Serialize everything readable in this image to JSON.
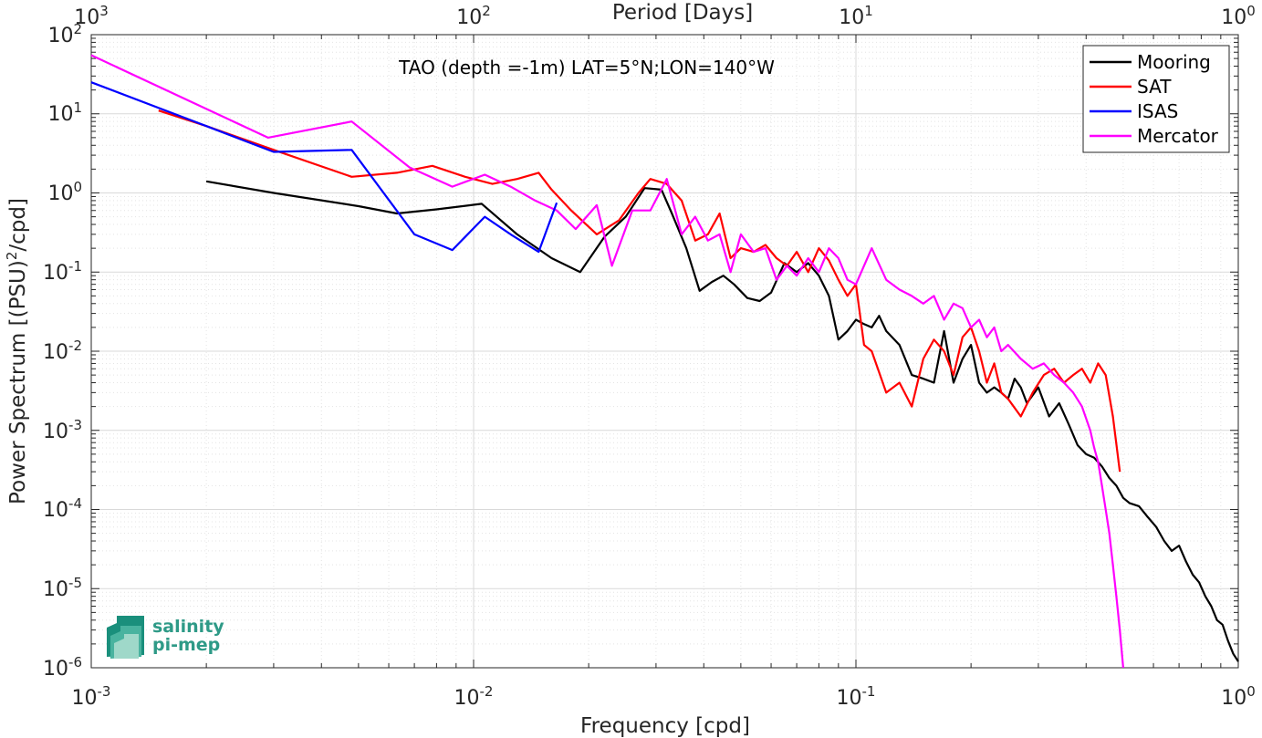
{
  "chart_data": {
    "type": "line",
    "x_scale": "log",
    "y_scale": "log",
    "xlim": [
      0.001,
      1
    ],
    "ylim": [
      1e-06,
      100
    ],
    "grid": true,
    "legend_position": "top-right",
    "xlabel": "Frequency [cpd]",
    "ylabel": "Power Spectrum [(PSU)",
    "ylabel_sup": "2",
    "ylabel_end": "/cpd]",
    "top_axis_label": "Period [Days]",
    "annotation": "TAO (depth =-1m) LAT=5°N;LON=140°W",
    "x_ticks": [
      {
        "base": "10",
        "exp": "-3"
      },
      {
        "base": "10",
        "exp": "-2"
      },
      {
        "base": "10",
        "exp": "-1"
      },
      {
        "base": "10",
        "exp": "0"
      }
    ],
    "top_ticks": [
      {
        "base": "10",
        "exp": "3"
      },
      {
        "base": "10",
        "exp": "2"
      },
      {
        "base": "10",
        "exp": "1"
      },
      {
        "base": "10",
        "exp": "0"
      }
    ],
    "y_ticks": [
      {
        "base": "10",
        "exp": "-6"
      },
      {
        "base": "10",
        "exp": "-5"
      },
      {
        "base": "10",
        "exp": "-4"
      },
      {
        "base": "10",
        "exp": "-3"
      },
      {
        "base": "10",
        "exp": "-2"
      },
      {
        "base": "10",
        "exp": "-1"
      },
      {
        "base": "10",
        "exp": "0"
      },
      {
        "base": "10",
        "exp": "1"
      },
      {
        "base": "10",
        "exp": "2"
      }
    ],
    "series": [
      {
        "name": "Mooring",
        "color": "#000000",
        "x": [
          0.002,
          0.003,
          0.005,
          0.0063,
          0.008,
          0.0105,
          0.013,
          0.016,
          0.019,
          0.022,
          0.025,
          0.028,
          0.031,
          0.033,
          0.036,
          0.039,
          0.042,
          0.045,
          0.048,
          0.052,
          0.056,
          0.06,
          0.065,
          0.07,
          0.075,
          0.08,
          0.085,
          0.09,
          0.095,
          0.1,
          0.105,
          0.11,
          0.115,
          0.12,
          0.13,
          0.14,
          0.15,
          0.16,
          0.17,
          0.18,
          0.19,
          0.2,
          0.21,
          0.22,
          0.23,
          0.24,
          0.25,
          0.26,
          0.27,
          0.28,
          0.3,
          0.32,
          0.34,
          0.36,
          0.38,
          0.4,
          0.42,
          0.44,
          0.46,
          0.48,
          0.5,
          0.52,
          0.55,
          0.58,
          0.61,
          0.64,
          0.67,
          0.7,
          0.73,
          0.76,
          0.79,
          0.82,
          0.85,
          0.88,
          0.91,
          0.94,
          0.97,
          1.0
        ],
        "y": [
          1.4,
          1.0,
          0.68,
          0.55,
          0.62,
          0.73,
          0.3,
          0.15,
          0.1,
          0.28,
          0.5,
          1.15,
          1.1,
          0.55,
          0.2,
          0.058,
          0.075,
          0.09,
          0.07,
          0.047,
          0.043,
          0.055,
          0.13,
          0.1,
          0.13,
          0.09,
          0.05,
          0.014,
          0.018,
          0.025,
          0.022,
          0.02,
          0.028,
          0.018,
          0.012,
          0.005,
          0.0045,
          0.004,
          0.018,
          0.004,
          0.008,
          0.012,
          0.004,
          0.003,
          0.0035,
          0.003,
          0.0025,
          0.0045,
          0.0035,
          0.0022,
          0.0035,
          0.0015,
          0.0022,
          0.0012,
          0.00065,
          0.0005,
          0.00045,
          0.00035,
          0.00025,
          0.0002,
          0.00014,
          0.00012,
          0.00011,
          8e-05,
          6e-05,
          4e-05,
          3e-05,
          3.5e-05,
          2.2e-05,
          1.5e-05,
          1.2e-05,
          8e-06,
          6e-06,
          4e-06,
          3.5e-06,
          2.2e-06,
          1.5e-06,
          1.2e-06
        ]
      },
      {
        "name": "SAT",
        "color": "#ff0000",
        "x": [
          0.0015,
          0.002,
          0.003,
          0.0048,
          0.0063,
          0.0078,
          0.0095,
          0.0112,
          0.013,
          0.0148,
          0.016,
          0.018,
          0.021,
          0.024,
          0.027,
          0.029,
          0.032,
          0.035,
          0.038,
          0.041,
          0.044,
          0.047,
          0.05,
          0.054,
          0.058,
          0.062,
          0.066,
          0.07,
          0.075,
          0.08,
          0.085,
          0.09,
          0.095,
          0.1,
          0.105,
          0.11,
          0.12,
          0.13,
          0.14,
          0.15,
          0.16,
          0.17,
          0.18,
          0.19,
          0.2,
          0.21,
          0.22,
          0.23,
          0.24,
          0.25,
          0.27,
          0.29,
          0.31,
          0.33,
          0.35,
          0.37,
          0.39,
          0.41,
          0.43,
          0.45,
          0.47,
          0.49
        ],
        "y": [
          11,
          7,
          3.5,
          1.6,
          1.8,
          2.2,
          1.6,
          1.3,
          1.5,
          1.8,
          1.1,
          0.6,
          0.3,
          0.45,
          1.0,
          1.5,
          1.3,
          0.8,
          0.25,
          0.3,
          0.55,
          0.15,
          0.2,
          0.18,
          0.22,
          0.15,
          0.12,
          0.18,
          0.1,
          0.2,
          0.14,
          0.08,
          0.05,
          0.07,
          0.012,
          0.01,
          0.003,
          0.004,
          0.002,
          0.008,
          0.014,
          0.01,
          0.005,
          0.015,
          0.02,
          0.01,
          0.004,
          0.007,
          0.003,
          0.0025,
          0.0015,
          0.003,
          0.005,
          0.006,
          0.004,
          0.005,
          0.006,
          0.004,
          0.007,
          0.005,
          0.0015,
          0.0003
        ]
      },
      {
        "name": "ISAS",
        "color": "#0000ff",
        "x": [
          0.001,
          0.002,
          0.003,
          0.0048,
          0.007,
          0.0088,
          0.0107,
          0.0125,
          0.0148,
          0.0165
        ],
        "y": [
          25,
          7,
          3.3,
          3.5,
          0.3,
          0.19,
          0.5,
          0.3,
          0.18,
          0.75
        ]
      },
      {
        "name": "Mercator",
        "color": "#ff00ff",
        "x": [
          0.001,
          0.0029,
          0.0048,
          0.0068,
          0.0088,
          0.0107,
          0.0125,
          0.0145,
          0.0165,
          0.0185,
          0.021,
          0.023,
          0.026,
          0.029,
          0.032,
          0.035,
          0.038,
          0.041,
          0.044,
          0.047,
          0.05,
          0.054,
          0.058,
          0.062,
          0.066,
          0.07,
          0.075,
          0.08,
          0.085,
          0.09,
          0.095,
          0.1,
          0.11,
          0.12,
          0.13,
          0.14,
          0.15,
          0.16,
          0.17,
          0.18,
          0.19,
          0.2,
          0.21,
          0.22,
          0.23,
          0.24,
          0.25,
          0.27,
          0.29,
          0.31,
          0.33,
          0.35,
          0.37,
          0.39,
          0.41,
          0.42,
          0.43,
          0.44,
          0.45,
          0.46,
          0.47,
          0.48,
          0.49,
          0.5
        ],
        "y": [
          55,
          5,
          8,
          2.1,
          1.2,
          1.7,
          1.2,
          0.8,
          0.6,
          0.35,
          0.7,
          0.12,
          0.6,
          0.6,
          1.5,
          0.3,
          0.5,
          0.25,
          0.3,
          0.1,
          0.3,
          0.18,
          0.2,
          0.08,
          0.12,
          0.09,
          0.15,
          0.1,
          0.2,
          0.15,
          0.08,
          0.07,
          0.2,
          0.08,
          0.06,
          0.05,
          0.04,
          0.05,
          0.025,
          0.04,
          0.035,
          0.02,
          0.025,
          0.015,
          0.02,
          0.01,
          0.012,
          0.008,
          0.006,
          0.007,
          0.005,
          0.004,
          0.003,
          0.002,
          0.001,
          0.0006,
          0.0004,
          0.0002,
          0.0001,
          5e-05,
          2e-05,
          8e-06,
          3e-06,
          1e-06
        ]
      }
    ]
  },
  "logo": {
    "line1": "salinity",
    "line2": "pi-mep"
  }
}
